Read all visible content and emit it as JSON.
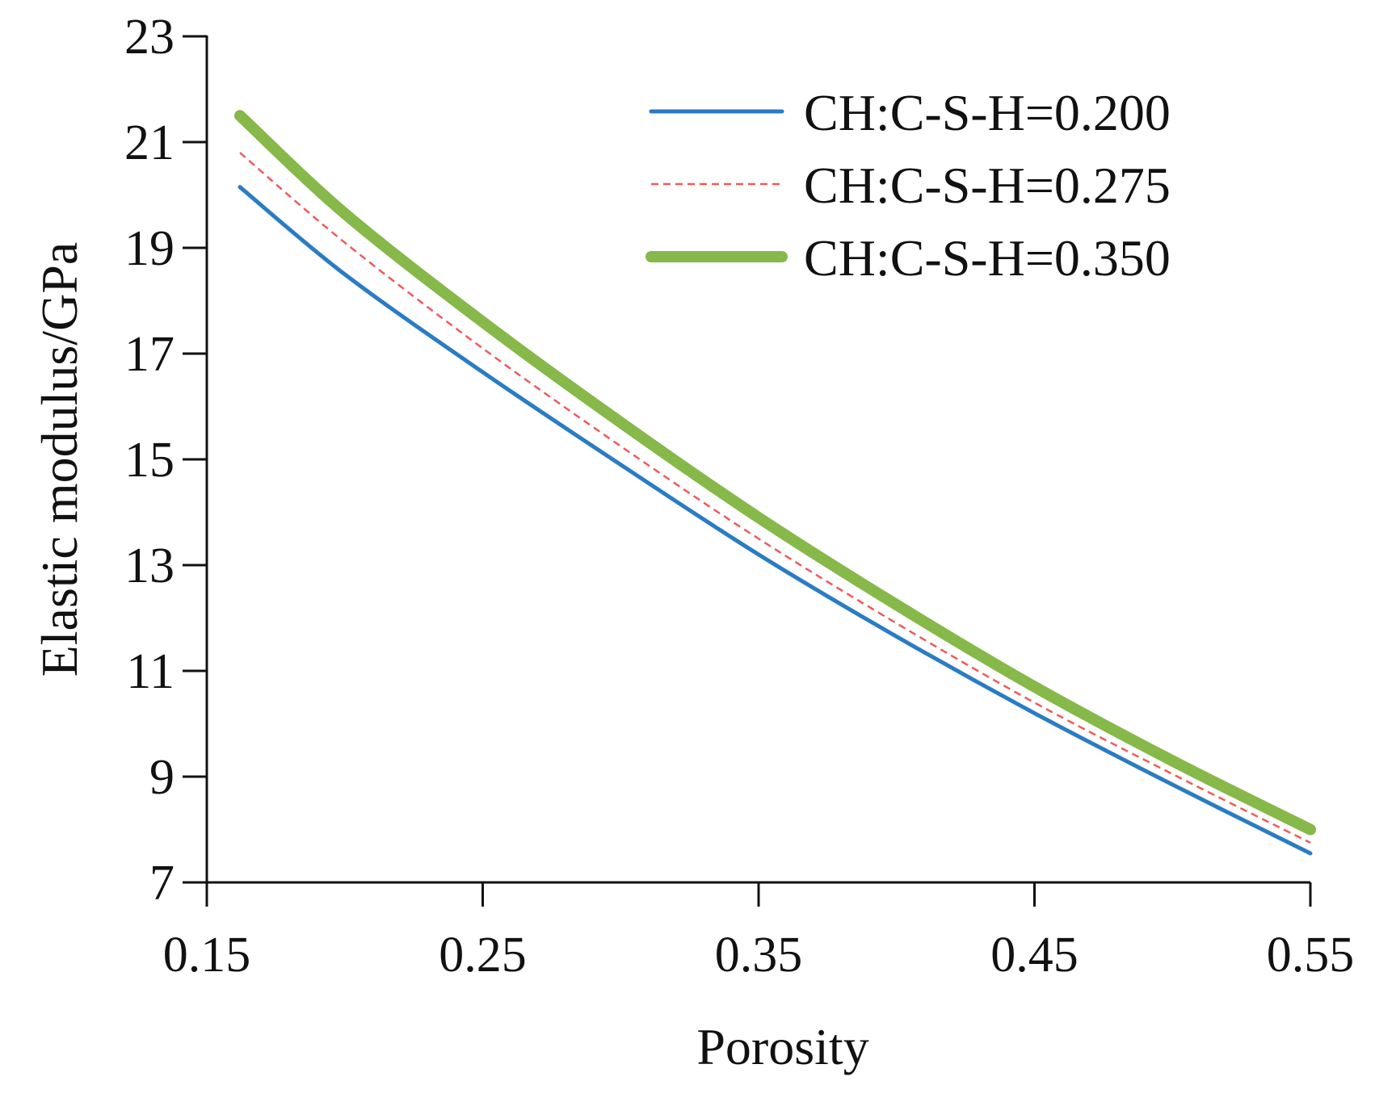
{
  "chart_data": {
    "type": "line",
    "title": "",
    "xlabel": "Porosity",
    "ylabel": "Elastic modulus/GPa",
    "xlim": [
      0.15,
      0.55
    ],
    "ylim": [
      7,
      23
    ],
    "xticks": [
      "0.15",
      "0.25",
      "0.35",
      "0.45",
      "0.55"
    ],
    "yticks": [
      "7",
      "9",
      "11",
      "13",
      "15",
      "17",
      "19",
      "21",
      "23"
    ],
    "grid": false,
    "legend_position": "top-right",
    "x": [
      0.162,
      0.2,
      0.25,
      0.3,
      0.35,
      0.4,
      0.45,
      0.5,
      0.55
    ],
    "series": [
      {
        "name": "CH:C-S-H=0.200",
        "color": "#2a7cc4",
        "style": "solid",
        "values": [
          20.15,
          18.5,
          16.65,
          14.9,
          13.2,
          11.65,
          10.2,
          8.85,
          7.55
        ]
      },
      {
        "name": "CH:C-S-H=0.275",
        "color": "#f05a5a",
        "style": "dashed",
        "values": [
          20.8,
          19.1,
          17.1,
          15.25,
          13.5,
          11.9,
          10.4,
          9.05,
          7.75
        ]
      },
      {
        "name": "CH:C-S-H=0.350",
        "color": "#86b84a",
        "style": "thick",
        "values": [
          21.5,
          19.65,
          17.6,
          15.7,
          13.9,
          12.25,
          10.7,
          9.3,
          8.0
        ]
      }
    ]
  }
}
